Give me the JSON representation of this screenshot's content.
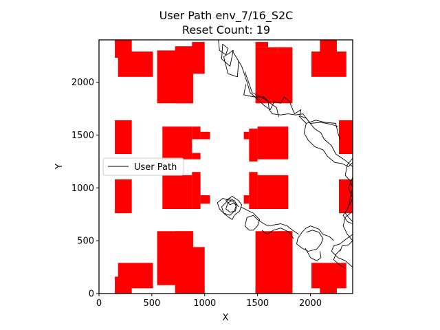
{
  "chart_data": {
    "type": "line",
    "title": "User Path env_7/16_S2C",
    "subtitle": "Reset Count: 19",
    "xlabel": "X",
    "ylabel": "Y",
    "xlim": [
      0,
      2400
    ],
    "ylim": [
      0,
      2400
    ],
    "xticks": [
      0,
      500,
      1000,
      1500,
      2000
    ],
    "yticks": [
      0,
      500,
      1000,
      1500,
      2000
    ],
    "xtick_labels": [
      "0",
      "500",
      "1000",
      "1500",
      "2000"
    ],
    "ytick_labels": [
      "0",
      "500",
      "1000",
      "1500",
      "2000"
    ],
    "grid": false,
    "legend": {
      "placement": "center-left",
      "entries": [
        "User Path"
      ]
    },
    "colors": {
      "obstacle": "#ff0000",
      "path": "#000000"
    },
    "obstacles": [
      [
        150,
        1320,
        310,
        1640
      ],
      [
        150,
        760,
        310,
        1080
      ],
      [
        150,
        1320,
        160,
        1640
      ],
      [
        150,
        760,
        160,
        1080
      ],
      [
        150,
        1320,
        160,
        1640
      ],
      [
        150,
        760,
        160,
        1080
      ],
      [
        160,
        1320,
        300,
        1640
      ],
      [
        160,
        760,
        300,
        1080
      ],
      [
        150,
        1320,
        300,
        1640
      ],
      [
        150,
        760,
        300,
        1080
      ],
      [
        180,
        2050,
        510,
        2290
      ],
      [
        150,
        2230,
        310,
        2400
      ],
      [
        180,
        50,
        510,
        290
      ],
      [
        150,
        0,
        310,
        160
      ],
      [
        550,
        1800,
        890,
        2300
      ],
      [
        720,
        1800,
        890,
        2340
      ],
      [
        880,
        2080,
        1000,
        2380
      ],
      [
        700,
        2340,
        880,
        2380
      ],
      [
        550,
        80,
        890,
        590
      ],
      [
        720,
        0,
        890,
        590
      ],
      [
        880,
        0,
        1000,
        440
      ],
      [
        700,
        0,
        880,
        80
      ],
      [
        600,
        800,
        880,
        1580
      ],
      [
        880,
        1120,
        960,
        1580
      ],
      [
        960,
        1460,
        1050,
        1530
      ],
      [
        960,
        850,
        1050,
        930
      ],
      [
        1480,
        1800,
        1830,
        2280
      ],
      [
        1480,
        2280,
        1690,
        2330
      ],
      [
        1480,
        2330,
        1600,
        2380
      ],
      [
        1480,
        0,
        1830,
        590
      ],
      [
        1480,
        0,
        1600,
        50
      ],
      [
        1690,
        50,
        1830,
        590
      ],
      [
        1420,
        1250,
        1500,
        1560
      ],
      [
        1370,
        1460,
        1420,
        1530
      ],
      [
        1500,
        800,
        1790,
        1580
      ],
      [
        1420,
        800,
        1500,
        1150
      ],
      [
        1370,
        850,
        1420,
        930
      ],
      [
        2010,
        2050,
        2340,
        2290
      ],
      [
        2090,
        2230,
        2250,
        2400
      ],
      [
        2010,
        50,
        2340,
        290
      ],
      [
        2090,
        0,
        2250,
        160
      ],
      [
        2270,
        1320,
        2410,
        1640
      ],
      [
        2270,
        760,
        2410,
        1080
      ]
    ],
    "obstacle_rects": [
      [
        150,
        1320,
        310,
        1640
      ],
      [
        150,
        760,
        310,
        1080
      ],
      [
        180,
        2050,
        510,
        2290
      ],
      [
        150,
        2230,
        310,
        2400
      ],
      [
        180,
        50,
        510,
        290
      ],
      [
        150,
        0,
        310,
        160
      ],
      [
        550,
        1800,
        890,
        2300
      ],
      [
        720,
        1800,
        890,
        2340
      ],
      [
        880,
        2080,
        1000,
        2380
      ],
      [
        550,
        80,
        890,
        590
      ],
      [
        720,
        0,
        890,
        590
      ],
      [
        880,
        0,
        1000,
        440
      ],
      [
        600,
        1270,
        880,
        1580
      ],
      [
        880,
        1460,
        960,
        1580
      ],
      [
        960,
        1460,
        1050,
        1530
      ],
      [
        880,
        1270,
        960,
        1330
      ],
      [
        600,
        800,
        880,
        1120
      ],
      [
        880,
        800,
        960,
        1150
      ],
      [
        960,
        850,
        1050,
        930
      ],
      [
        1480,
        1800,
        1830,
        2280
      ],
      [
        1480,
        2280,
        1690,
        2330
      ],
      [
        1480,
        2330,
        1600,
        2380
      ],
      [
        1690,
        2280,
        1830,
        2330
      ],
      [
        1480,
        0,
        1830,
        590
      ],
      [
        1480,
        0,
        1600,
        50
      ],
      [
        1690,
        50,
        1830,
        590
      ],
      [
        1420,
        1250,
        1500,
        1560
      ],
      [
        1370,
        1460,
        1420,
        1530
      ],
      [
        1500,
        1270,
        1790,
        1580
      ],
      [
        1500,
        800,
        1790,
        1120
      ],
      [
        1420,
        800,
        1500,
        1150
      ],
      [
        1370,
        850,
        1420,
        930
      ],
      [
        2010,
        2050,
        2340,
        2290
      ],
      [
        2090,
        2230,
        2250,
        2400
      ],
      [
        2010,
        50,
        2340,
        290
      ],
      [
        2090,
        0,
        2250,
        160
      ],
      [
        2270,
        1320,
        2410,
        1640
      ],
      [
        2270,
        760,
        2410,
        1080
      ]
    ],
    "series": [
      {
        "name": "User Path",
        "paths": [
          [
            [
              1130,
              2400
            ],
            [
              1140,
              2300
            ],
            [
              1200,
              2260
            ],
            [
              1220,
              2320
            ],
            [
              1170,
              2360
            ],
            [
              1160,
              2220
            ],
            [
              1240,
              2150
            ],
            [
              1270,
              2300
            ],
            [
              1180,
              2240
            ],
            [
              1220,
              2080
            ],
            [
              1310,
              2050
            ],
            [
              1320,
              2200
            ],
            [
              1260,
              2300
            ],
            [
              1350,
              2150
            ],
            [
              1400,
              2000
            ],
            [
              1430,
              1900
            ],
            [
              1500,
              1840
            ],
            [
              1560,
              1780
            ],
            [
              1620,
              1740
            ],
            [
              1660,
              1820
            ],
            [
              1720,
              1800
            ],
            [
              1750,
              1860
            ],
            [
              1800,
              1820
            ],
            [
              1850,
              1700
            ],
            [
              1910,
              1740
            ],
            [
              1900,
              1680
            ],
            [
              1960,
              1660
            ],
            [
              2000,
              1610
            ],
            [
              2100,
              1620
            ],
            [
              2200,
              1600
            ],
            [
              2260,
              1580
            ]
          ],
          [
            [
              1380,
              2100
            ],
            [
              1450,
              1900
            ],
            [
              1530,
              1860
            ],
            [
              1600,
              1820
            ],
            [
              1610,
              1740
            ],
            [
              1640,
              1700
            ],
            [
              1720,
              1690
            ],
            [
              1790,
              1700
            ],
            [
              1860,
              1690
            ],
            [
              1930,
              1700
            ],
            [
              1990,
              1620
            ],
            [
              2040,
              1560
            ],
            [
              2100,
              1520
            ],
            [
              2130,
              1460
            ],
            [
              2200,
              1400
            ],
            [
              2240,
              1320
            ],
            [
              2330,
              1260
            ],
            [
              2400,
              1200
            ]
          ],
          [
            [
              1390,
              1980
            ],
            [
              1370,
              1880
            ],
            [
              1470,
              1860
            ],
            [
              1560,
              1860
            ],
            [
              1620,
              1800
            ],
            [
              1680,
              1760
            ],
            [
              1700,
              1670
            ]
          ],
          [
            [
              1890,
              1680
            ],
            [
              1960,
              1610
            ],
            [
              2050,
              1640
            ],
            [
              2140,
              1620
            ],
            [
              2240,
              1610
            ],
            [
              2260,
              1520
            ],
            [
              2280,
              1460
            ]
          ],
          [
            [
              1960,
              1610
            ],
            [
              1940,
              1520
            ],
            [
              1980,
              1450
            ],
            [
              2040,
              1390
            ],
            [
              2120,
              1360
            ],
            [
              2160,
              1300
            ],
            [
              2230,
              1240
            ],
            [
              2300,
              1230
            ],
            [
              2360,
              1200
            ],
            [
              2400,
              1240
            ]
          ],
          [
            [
              2400,
              1280
            ],
            [
              2350,
              1220
            ],
            [
              2330,
              1120
            ],
            [
              2380,
              1060
            ],
            [
              2400,
              1000
            ],
            [
              2380,
              920
            ],
            [
              2360,
              820
            ],
            [
              2330,
              760
            ],
            [
              2380,
              700
            ],
            [
              2400,
              680
            ]
          ],
          [
            [
              2400,
              1100
            ],
            [
              2360,
              1000
            ],
            [
              2400,
              900
            ],
            [
              2350,
              800
            ],
            [
              2310,
              740
            ],
            [
              2350,
              680
            ],
            [
              2400,
              660
            ]
          ],
          [
            [
              2400,
              780
            ],
            [
              2330,
              720
            ],
            [
              2310,
              640
            ],
            [
              2350,
              560
            ],
            [
              2400,
              500
            ],
            [
              2360,
              460
            ],
            [
              2300,
              450
            ],
            [
              2280,
              400
            ]
          ],
          [
            [
              2400,
              560
            ],
            [
              2330,
              510
            ],
            [
              2280,
              470
            ],
            [
              2220,
              450
            ],
            [
              2200,
              400
            ],
            [
              2260,
              340
            ],
            [
              2330,
              310
            ],
            [
              2400,
              250
            ]
          ],
          [
            [
              2290,
              420
            ],
            [
              2240,
              370
            ],
            [
              2220,
              320
            ],
            [
              2280,
              270
            ],
            [
              2330,
              240
            ]
          ],
          [
            [
              2220,
              500
            ],
            [
              2180,
              540
            ],
            [
              2120,
              560
            ],
            [
              2080,
              610
            ],
            [
              2000,
              640
            ],
            [
              1960,
              620
            ],
            [
              1920,
              580
            ],
            [
              1880,
              520
            ],
            [
              1870,
              470
            ],
            [
              1920,
              430
            ],
            [
              1980,
              400
            ],
            [
              2060,
              420
            ],
            [
              2100,
              470
            ],
            [
              2120,
              520
            ],
            [
              2080,
              580
            ],
            [
              2020,
              600
            ],
            [
              1960,
              580
            ]
          ],
          [
            [
              1890,
              560
            ],
            [
              1830,
              600
            ],
            [
              1780,
              640
            ],
            [
              1720,
              660
            ],
            [
              1660,
              650
            ],
            [
              1600,
              640
            ],
            [
              1560,
              660
            ],
            [
              1500,
              700
            ],
            [
              1460,
              740
            ],
            [
              1400,
              720
            ],
            [
              1380,
              640
            ],
            [
              1420,
              600
            ],
            [
              1460,
              600
            ],
            [
              1500,
              640
            ],
            [
              1520,
              700
            ],
            [
              1460,
              760
            ],
            [
              1380,
              800
            ],
            [
              1340,
              820
            ]
          ],
          [
            [
              1320,
              820
            ],
            [
              1280,
              880
            ],
            [
              1230,
              900
            ],
            [
              1200,
              860
            ],
            [
              1160,
              820
            ],
            [
              1180,
              760
            ],
            [
              1240,
              740
            ],
            [
              1280,
              780
            ],
            [
              1300,
              840
            ],
            [
              1260,
              880
            ],
            [
              1220,
              860
            ],
            [
              1200,
              800
            ],
            [
              1240,
              770
            ],
            [
              1290,
              780
            ],
            [
              1300,
              820
            ],
            [
              1280,
              860
            ],
            [
              1240,
              840
            ],
            [
              1200,
              880
            ],
            [
              1260,
              920
            ],
            [
              1320,
              880
            ],
            [
              1350,
              840
            ],
            [
              1330,
              780
            ],
            [
              1280,
              740
            ],
            [
              1260,
              700
            ],
            [
              1230,
              720
            ],
            [
              1180,
              760
            ],
            [
              1140,
              800
            ],
            [
              1120,
              860
            ],
            [
              1170,
              900
            ],
            [
              1250,
              880
            ]
          ],
          [
            [
              1840,
              520
            ],
            [
              1800,
              580
            ],
            [
              1720,
              620
            ],
            [
              1650,
              600
            ],
            [
              1590,
              560
            ],
            [
              1540,
              600
            ]
          ],
          [
            [
              1950,
              430
            ],
            [
              1980,
              380
            ],
            [
              2000,
              340
            ],
            [
              2060,
              310
            ],
            [
              2100,
              340
            ],
            [
              2090,
              400
            ]
          ]
        ]
      }
    ]
  }
}
